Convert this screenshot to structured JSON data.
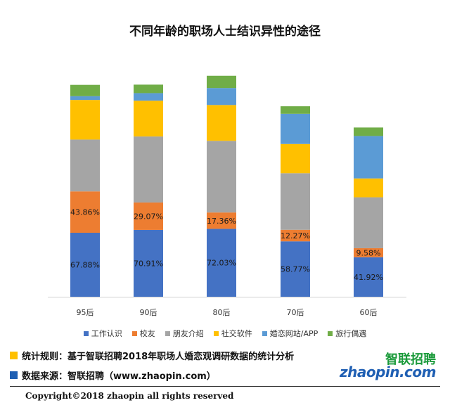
{
  "chart_data": {
    "type": "bar",
    "stacked": true,
    "title": "不同年龄的职场人士结识异性的途径",
    "categories": [
      "95后",
      "90后",
      "80后",
      "70后",
      "60后"
    ],
    "series": [
      {
        "name": "工作认识",
        "color": "#4472c4",
        "values": [
          67.88,
          70.91,
          72.03,
          58.77,
          41.92
        ],
        "labels": [
          "67.88%",
          "70.91%",
          "72.03%",
          "58.77%",
          "41.92%"
        ]
      },
      {
        "name": "校友",
        "color": "#ed7d31",
        "values": [
          43.86,
          29.07,
          17.36,
          12.27,
          9.58
        ],
        "labels": [
          "43.86%",
          "29.07%",
          "17.36%",
          "12.27%",
          "9.58%"
        ]
      },
      {
        "name": "朋友介绍",
        "color": "#a5a5a5",
        "values": [
          55,
          70,
          76,
          60,
          54
        ]
      },
      {
        "name": "社交软件",
        "color": "#ffc000",
        "values": [
          42,
          38,
          38,
          31,
          20
        ]
      },
      {
        "name": "婚恋网站/APP",
        "color": "#5b9bd5",
        "values": [
          4,
          8,
          18,
          32,
          45
        ]
      },
      {
        "name": "旅行偶遇",
        "color": "#70ad47",
        "values": [
          12,
          9,
          13,
          8,
          9
        ]
      }
    ],
    "ylim": [
      0,
      270
    ],
    "grid": false,
    "legend_position": "bottom"
  },
  "notes": {
    "rules": "统计规则：基于智联招聘2018年职场人婚恋观调研数据的统计分析",
    "source": "数据来源：智联招聘（www.zhaopin.com）",
    "rules_color": "#ffc000",
    "source_color": "#1f5fb3"
  },
  "logo": {
    "cn": "智联招聘",
    "en": "zhaopin.com"
  },
  "copyright": "Copyright©2018 zhaopin all rights reserved"
}
